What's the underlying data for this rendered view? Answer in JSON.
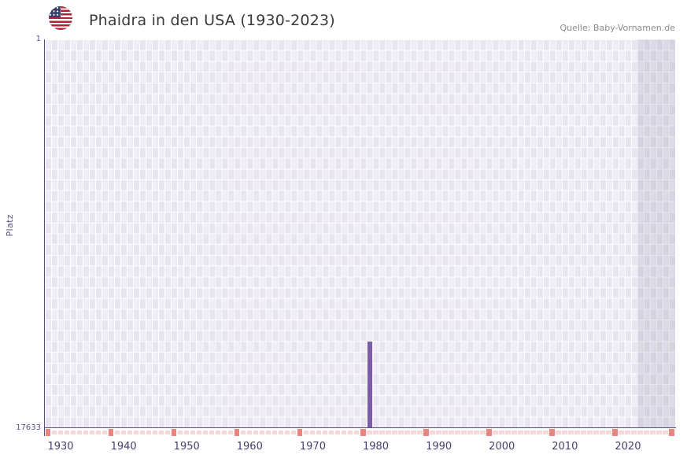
{
  "header": {
    "title": "Phaidra in den USA (1930-2023)",
    "source": "Quelle: Baby-Vornamen.de"
  },
  "chart_data": {
    "type": "bar",
    "title": "Phaidra in den USA (1930-2023)",
    "xlabel": "",
    "ylabel": "Platz",
    "y_axis": {
      "top_label": "1",
      "bottom_label": "17633",
      "min": 1,
      "max": 17633,
      "inverted": true
    },
    "x_range": [
      1928,
      2027
    ],
    "x_ticks": [
      1930,
      1940,
      1950,
      1960,
      1970,
      1980,
      1990,
      2000,
      2010,
      2020
    ],
    "bars": [
      {
        "year": 1979,
        "rank": 13750
      }
    ],
    "shaded_from_year": 2022,
    "marker_row": {
      "highlight_years": [
        1928,
        1938,
        1948,
        1958,
        1968,
        1978,
        1988,
        1998,
        2008,
        2018,
        2027
      ],
      "light_color": "#f6d7d7",
      "highlight_color": "#e9847f"
    },
    "colors": {
      "bar": "#7c5ea8",
      "grid_cell_a": "#e8e4f0",
      "grid_cell_b": "#f0edf8",
      "grid_line": "#ffffff",
      "axis": "#5a4e7e",
      "shade": "rgba(125,122,140,0.17)"
    }
  }
}
